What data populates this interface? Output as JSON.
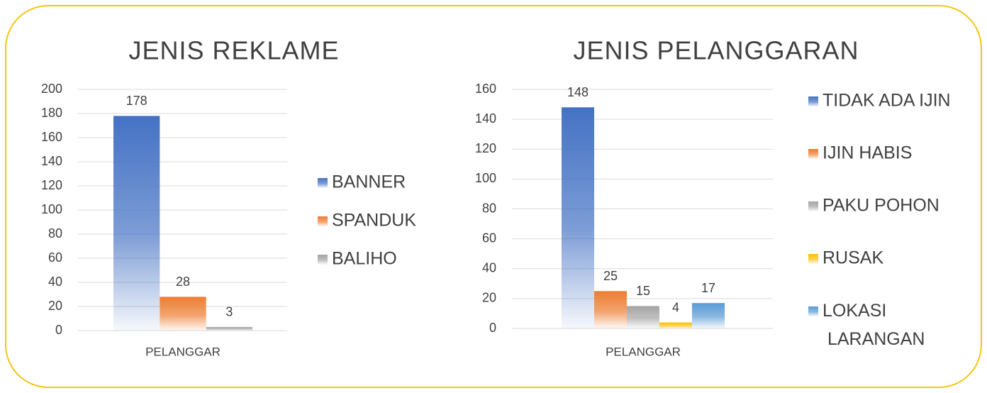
{
  "chart_data": [
    {
      "type": "bar",
      "title": "JENIS REKLAME",
      "categories": [
        "PELANGGAR"
      ],
      "series": [
        {
          "name": "BANNER",
          "color": "#4472c4",
          "values": [
            178
          ]
        },
        {
          "name": "SPANDUK",
          "color": "#ed7d31",
          "values": [
            28
          ]
        },
        {
          "name": "BALIHO",
          "color": "#a5a5a5",
          "values": [
            3
          ]
        }
      ],
      "ylim": [
        0,
        200
      ],
      "yticks": [
        0,
        20,
        40,
        60,
        80,
        100,
        120,
        140,
        160,
        180,
        200
      ],
      "grid": true,
      "legend": "right"
    },
    {
      "type": "bar",
      "title": "JENIS PELANGGARAN",
      "categories": [
        "PELANGGAR"
      ],
      "series": [
        {
          "name": "TIDAK ADA IJIN",
          "color": "#4472c4",
          "values": [
            148
          ]
        },
        {
          "name": "IJIN HABIS",
          "color": "#ed7d31",
          "values": [
            25
          ]
        },
        {
          "name": "PAKU POHON",
          "color": "#a5a5a5",
          "values": [
            15
          ]
        },
        {
          "name": "RUSAK",
          "color": "#ffc000",
          "values": [
            4
          ]
        },
        {
          "name": "LOKASI LARANGAN",
          "color": "#5b9bd5",
          "values": [
            17
          ]
        }
      ],
      "ylim": [
        0,
        160
      ],
      "yticks": [
        0,
        20,
        40,
        60,
        80,
        100,
        120,
        140,
        160
      ],
      "grid": true,
      "legend": "right"
    }
  ]
}
